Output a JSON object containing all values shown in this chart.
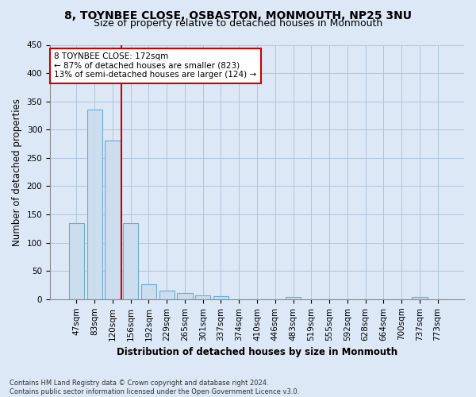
{
  "title1": "8, TOYNBEE CLOSE, OSBASTON, MONMOUTH, NP25 3NU",
  "title2": "Size of property relative to detached houses in Monmouth",
  "xlabel": "Distribution of detached houses by size in Monmouth",
  "ylabel": "Number of detached properties",
  "footnote": "Contains HM Land Registry data © Crown copyright and database right 2024.\nContains public sector information licensed under the Open Government Licence v3.0.",
  "bar_labels": [
    "47sqm",
    "83sqm",
    "120sqm",
    "156sqm",
    "192sqm",
    "229sqm",
    "265sqm",
    "301sqm",
    "337sqm",
    "374sqm",
    "410sqm",
    "446sqm",
    "483sqm",
    "519sqm",
    "555sqm",
    "592sqm",
    "628sqm",
    "664sqm",
    "700sqm",
    "737sqm",
    "773sqm"
  ],
  "bar_values": [
    135,
    335,
    281,
    134,
    27,
    15,
    11,
    7,
    6,
    0,
    0,
    0,
    4,
    0,
    0,
    0,
    0,
    0,
    0,
    4,
    0
  ],
  "bar_color": "#ccdded",
  "bar_edge_color": "#6aadd5",
  "vline_color": "#cc0000",
  "vline_x_pos": 2.5,
  "annotation_text": "8 TOYNBEE CLOSE: 172sqm\n← 87% of detached houses are smaller (823)\n13% of semi-detached houses are larger (124) →",
  "annotation_box_facecolor": "white",
  "annotation_box_edgecolor": "#cc0000",
  "ylim": [
    0,
    450
  ],
  "yticks": [
    0,
    50,
    100,
    150,
    200,
    250,
    300,
    350,
    400,
    450
  ],
  "background_color": "#dce8f5",
  "grid_color": "#b0c4de",
  "title1_fontsize": 10,
  "title2_fontsize": 9,
  "axis_label_fontsize": 8.5,
  "tick_fontsize": 7.5,
  "annot_fontsize": 7.5
}
